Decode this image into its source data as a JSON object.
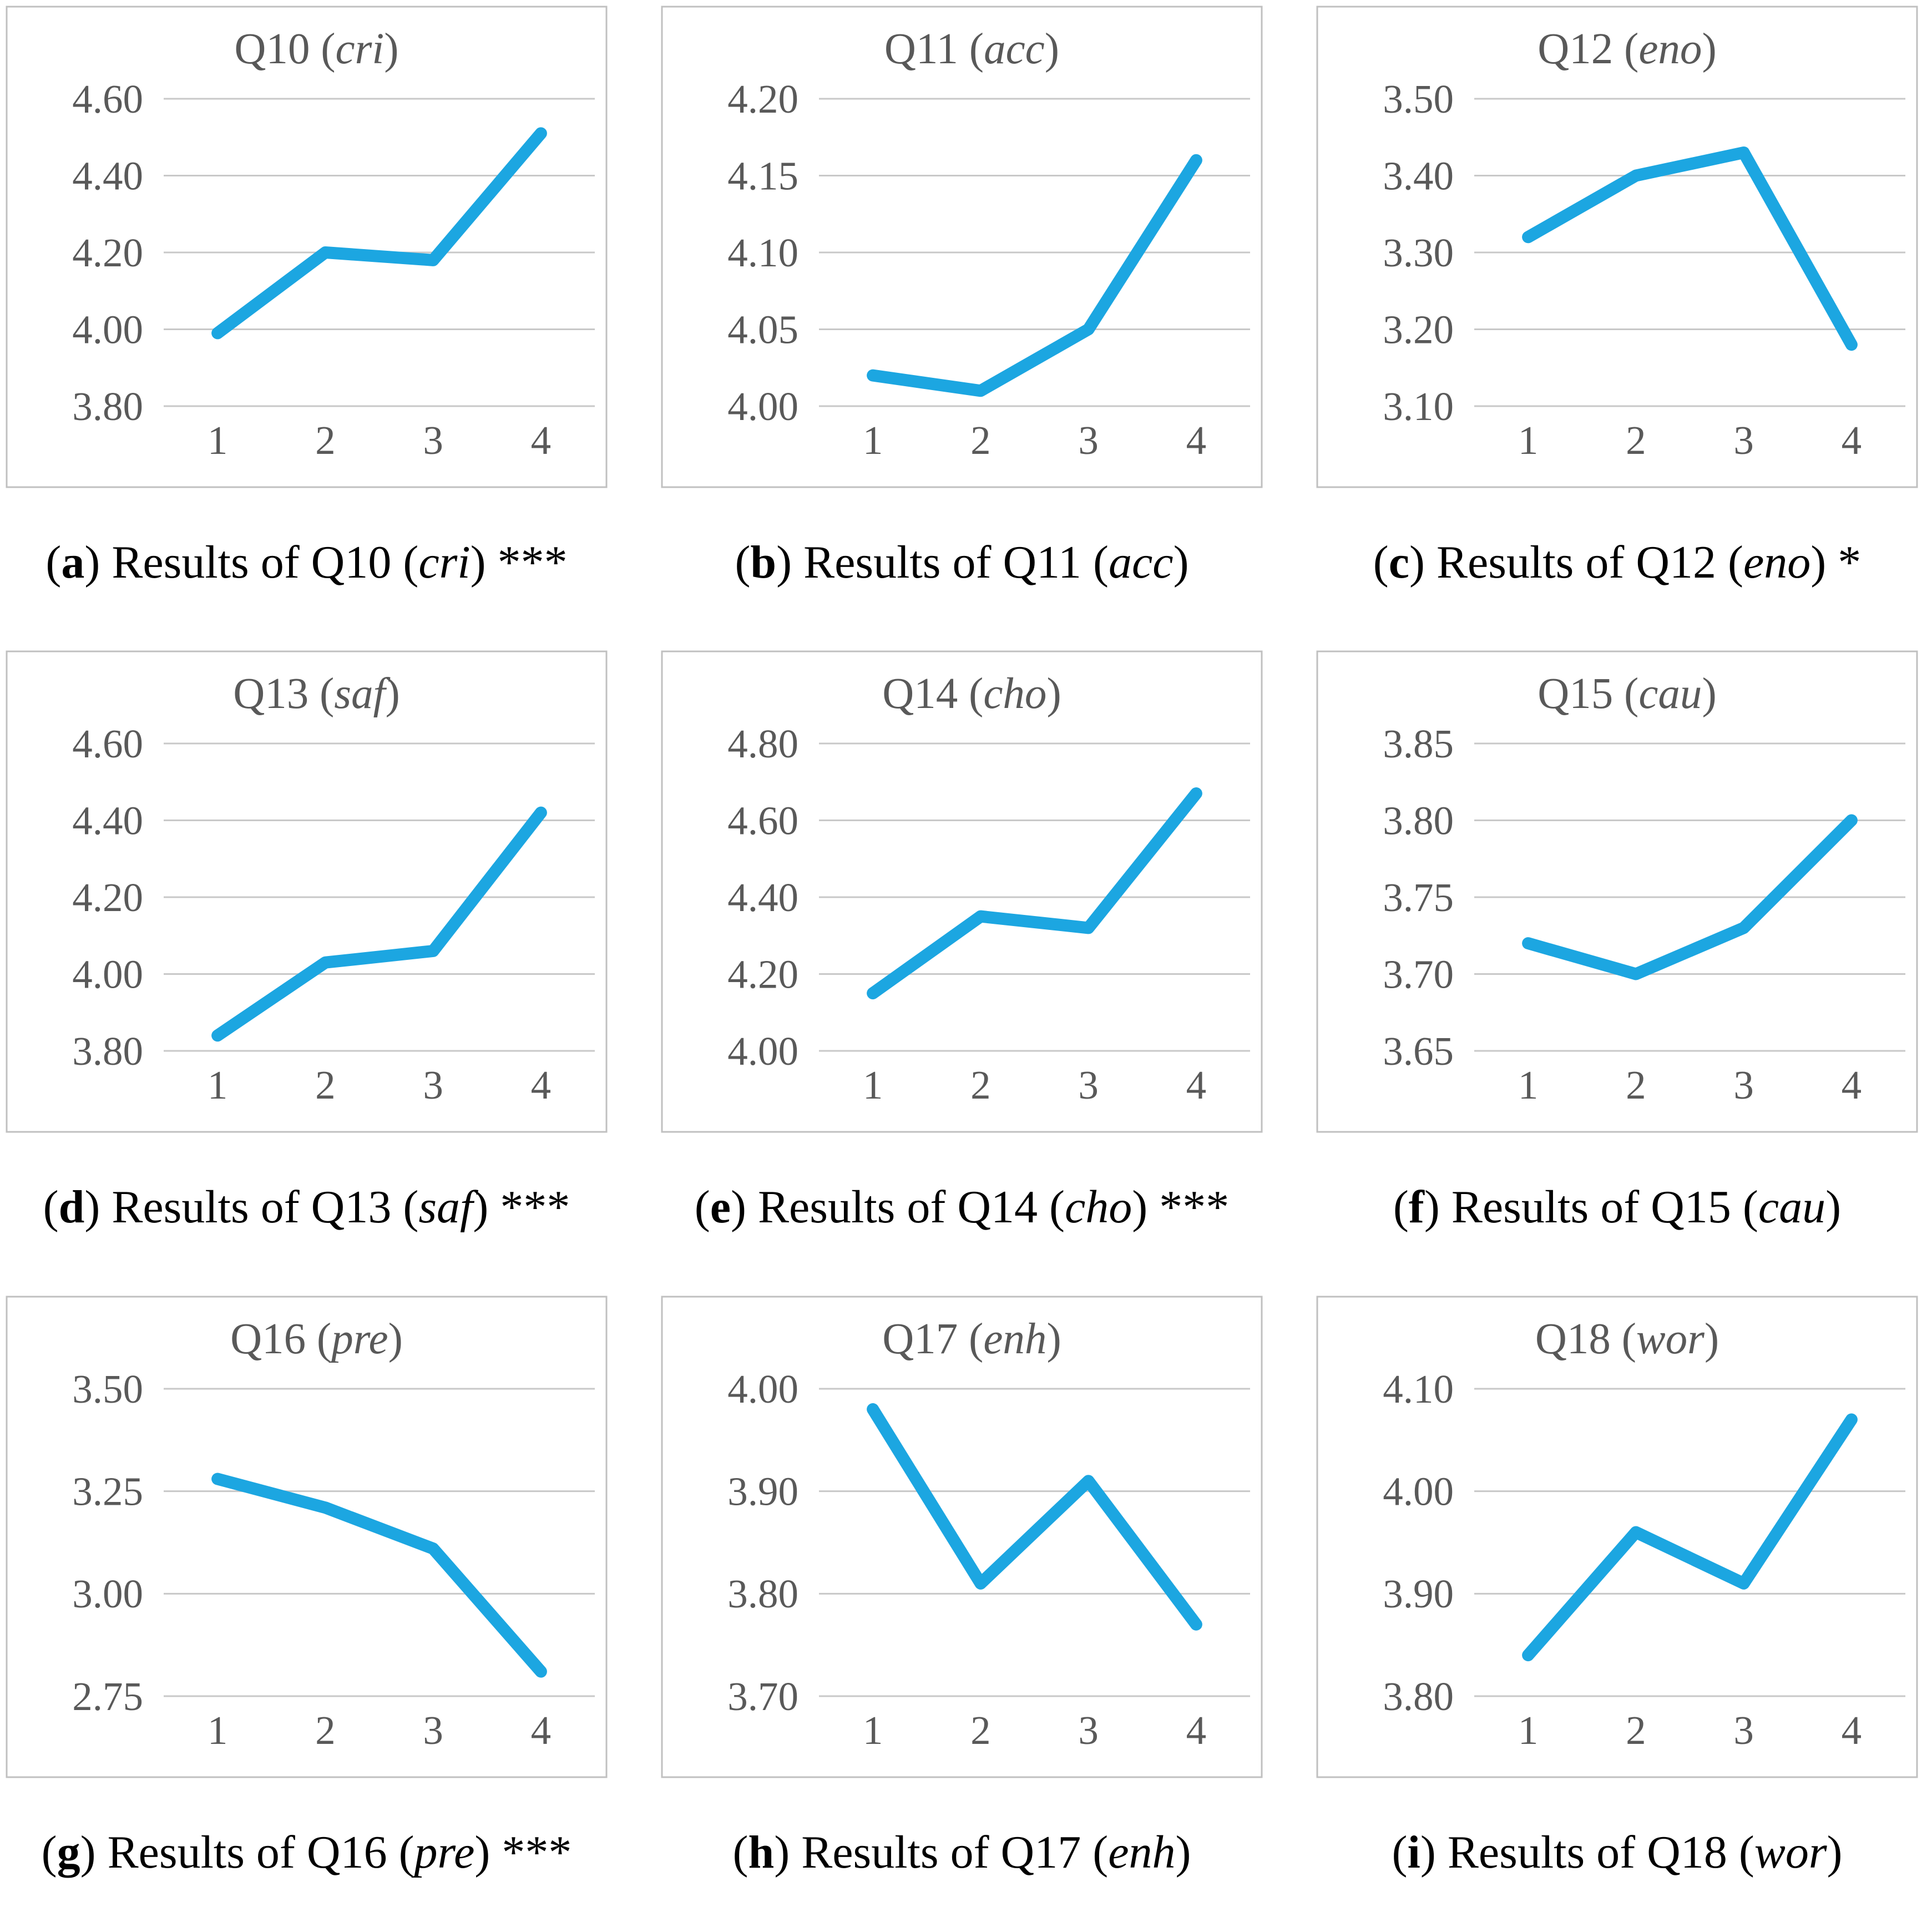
{
  "styles": {
    "line_color": "#1CA6E1",
    "grid_color": "#C8C8C8",
    "box_border_color": "#C0C0C0",
    "axis_text_color": "#595959",
    "caption_color": "#000000"
  },
  "chart_data": [
    {
      "type": "line",
      "title_q": "Q10",
      "title_code": "cri",
      "title_full": "Q10 (cri)",
      "x_labels": [
        "1",
        "2",
        "3",
        "4"
      ],
      "values": [
        3.99,
        4.2,
        4.18,
        4.51
      ],
      "y_ticks": [
        4.6,
        4.4,
        4.2,
        4.0,
        3.8
      ],
      "y_tick_labels": [
        "4.60",
        "4.40",
        "4.20",
        "4.00",
        "3.80"
      ],
      "ylim": [
        3.8,
        4.6
      ],
      "grid": true,
      "legend": "none",
      "caption": {
        "letter": "a",
        "body": "Results of Q10",
        "code": "cri",
        "stars": "***"
      }
    },
    {
      "type": "line",
      "title_q": "Q11",
      "title_code": "acc",
      "title_full": "Q11 (acc)",
      "x_labels": [
        "1",
        "2",
        "3",
        "4"
      ],
      "values": [
        4.02,
        4.01,
        4.05,
        4.16
      ],
      "y_ticks": [
        4.2,
        4.15,
        4.1,
        4.05,
        4.0
      ],
      "y_tick_labels": [
        "4.20",
        "4.15",
        "4.10",
        "4.05",
        "4.00"
      ],
      "ylim": [
        4.0,
        4.2
      ],
      "grid": true,
      "legend": "none",
      "caption": {
        "letter": "b",
        "body": "Results of Q11",
        "code": "acc",
        "stars": ""
      }
    },
    {
      "type": "line",
      "title_q": "Q12",
      "title_code": "eno",
      "title_full": "Q12 (eno)",
      "x_labels": [
        "1",
        "2",
        "3",
        "4"
      ],
      "values": [
        3.32,
        3.4,
        3.43,
        3.18
      ],
      "y_ticks": [
        3.5,
        3.4,
        3.3,
        3.2,
        3.1
      ],
      "y_tick_labels": [
        "3.50",
        "3.40",
        "3.30",
        "3.20",
        "3.10"
      ],
      "ylim": [
        3.1,
        3.5
      ],
      "grid": true,
      "legend": "none",
      "caption": {
        "letter": "c",
        "body": "Results of Q12",
        "code": "eno",
        "stars": "*"
      }
    },
    {
      "type": "line",
      "title_q": "Q13",
      "title_code": "saf",
      "title_full": "Q13 (saf)",
      "x_labels": [
        "1",
        "2",
        "3",
        "4"
      ],
      "values": [
        3.84,
        4.03,
        4.06,
        4.42
      ],
      "y_ticks": [
        4.6,
        4.4,
        4.2,
        4.0,
        3.8
      ],
      "y_tick_labels": [
        "4.60",
        "4.40",
        "4.20",
        "4.00",
        "3.80"
      ],
      "ylim": [
        3.8,
        4.6
      ],
      "grid": true,
      "legend": "none",
      "caption": {
        "letter": "d",
        "body": "Results of Q13",
        "code": "saf",
        "stars": "***"
      }
    },
    {
      "type": "line",
      "title_q": "Q14",
      "title_code": "cho",
      "title_full": "Q14 (cho)",
      "x_labels": [
        "1",
        "2",
        "3",
        "4"
      ],
      "values": [
        4.15,
        4.35,
        4.32,
        4.67
      ],
      "y_ticks": [
        4.8,
        4.6,
        4.4,
        4.2,
        4.0
      ],
      "y_tick_labels": [
        "4.80",
        "4.60",
        "4.40",
        "4.20",
        "4.00"
      ],
      "ylim": [
        4.0,
        4.8
      ],
      "grid": true,
      "legend": "none",
      "caption": {
        "letter": "e",
        "body": "Results of Q14",
        "code": "cho",
        "stars": "***"
      }
    },
    {
      "type": "line",
      "title_q": "Q15",
      "title_code": "cau",
      "title_full": "Q15 (cau)",
      "x_labels": [
        "1",
        "2",
        "3",
        "4"
      ],
      "values": [
        3.72,
        3.7,
        3.73,
        3.8
      ],
      "y_ticks": [
        3.85,
        3.8,
        3.75,
        3.7,
        3.65
      ],
      "y_tick_labels": [
        "3.85",
        "3.80",
        "3.75",
        "3.70",
        "3.65"
      ],
      "ylim": [
        3.65,
        3.85
      ],
      "grid": true,
      "legend": "none",
      "caption": {
        "letter": "f",
        "body": "Results of Q15",
        "code": "cau",
        "stars": ""
      }
    },
    {
      "type": "line",
      "title_q": "Q16",
      "title_code": "pre",
      "title_full": "Q16 (pre)",
      "x_labels": [
        "1",
        "2",
        "3",
        "4"
      ],
      "values": [
        3.28,
        3.21,
        3.11,
        2.81
      ],
      "y_ticks": [
        3.5,
        3.25,
        3.0,
        2.75
      ],
      "y_tick_labels": [
        "3.50",
        "3.25",
        "3.00",
        "2.75"
      ],
      "ylim": [
        2.75,
        3.5
      ],
      "grid": true,
      "legend": "none",
      "caption": {
        "letter": "g",
        "body": "Results of Q16",
        "code": "pre",
        "stars": "***"
      }
    },
    {
      "type": "line",
      "title_q": "Q17",
      "title_code": "enh",
      "title_full": "Q17 (enh)",
      "x_labels": [
        "1",
        "2",
        "3",
        "4"
      ],
      "values": [
        3.98,
        3.81,
        3.91,
        3.77
      ],
      "y_ticks": [
        4.0,
        3.9,
        3.8,
        3.7
      ],
      "y_tick_labels": [
        "4.00",
        "3.90",
        "3.80",
        "3.70"
      ],
      "ylim": [
        3.7,
        4.0
      ],
      "grid": true,
      "legend": "none",
      "caption": {
        "letter": "h",
        "body": "Results of Q17",
        "code": "enh",
        "stars": ""
      }
    },
    {
      "type": "line",
      "title_q": "Q18",
      "title_code": "wor",
      "title_full": "Q18 (wor)",
      "x_labels": [
        "1",
        "2",
        "3",
        "4"
      ],
      "values": [
        3.84,
        3.96,
        3.91,
        4.07
      ],
      "y_ticks": [
        4.1,
        4.0,
        3.9,
        3.8
      ],
      "y_tick_labels": [
        "4.10",
        "4.00",
        "3.90",
        "3.80"
      ],
      "ylim": [
        3.8,
        4.1
      ],
      "grid": true,
      "legend": "none",
      "caption": {
        "letter": "i",
        "body": "Results of Q18",
        "code": "wor",
        "stars": ""
      }
    }
  ]
}
